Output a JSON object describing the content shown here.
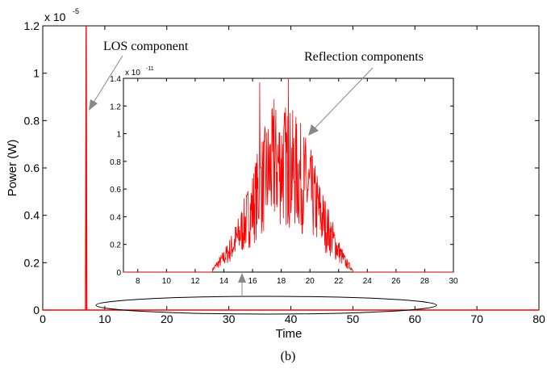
{
  "chart_data": [
    {
      "type": "line",
      "panel": "main",
      "xlabel": "Time",
      "ylabel": "Power (W)",
      "xlim": [
        0,
        80
      ],
      "ylim": [
        0,
        1.2
      ],
      "y_multiplier_base": "x 10",
      "y_multiplier_exp": "-5",
      "xticks": [
        0,
        10,
        20,
        30,
        40,
        50,
        60,
        70,
        80
      ],
      "yticks": [
        0,
        0.2,
        0.4,
        0.6,
        0.8,
        1,
        1.2
      ],
      "line_color": "#ff0000",
      "series": [
        {
          "name": "LOS component",
          "x": [
            0,
            6.9,
            7.0,
            7.1,
            80
          ],
          "y": [
            0,
            0,
            1.2,
            0,
            0
          ]
        }
      ],
      "annotations": [
        "LOS component",
        "Reflection components"
      ]
    },
    {
      "type": "line",
      "panel": "inset",
      "xlim": [
        7,
        30
      ],
      "ylim": [
        0,
        1.4
      ],
      "y_multiplier_base": "x 10",
      "y_multiplier_exp": "-11",
      "xticks": [
        8,
        10,
        12,
        14,
        16,
        18,
        20,
        22,
        24,
        26,
        28,
        30
      ],
      "yticks": [
        0,
        0.2,
        0.4,
        0.6,
        0.8,
        1,
        1.2,
        1.4
      ],
      "line_color": "#ff0000",
      "envelope": {
        "x": [
          13.2,
          13.5,
          14,
          14.5,
          15,
          15.5,
          16,
          16.5,
          17,
          17.5,
          18,
          18.5,
          19,
          19.5,
          20,
          20.5,
          21,
          21.5,
          22,
          22.5,
          23
        ],
        "y": [
          0.02,
          0.06,
          0.12,
          0.2,
          0.3,
          0.42,
          0.55,
          0.7,
          0.82,
          0.9,
          0.92,
          0.9,
          0.85,
          0.78,
          0.68,
          0.55,
          0.42,
          0.3,
          0.18,
          0.08,
          0.02
        ]
      },
      "peaks": [
        {
          "x": 16.5,
          "y": 1.37
        },
        {
          "x": 18.5,
          "y": 1.4
        },
        {
          "x": 17.5,
          "y": 1.25
        }
      ]
    }
  ],
  "labels": {
    "los": "LOS component",
    "reflection": "Reflection components",
    "caption": "(b)",
    "xlabel": "Time",
    "ylabel": "Power (W)",
    "main_exp_base": "x 10",
    "main_exp": "-5",
    "inset_exp_base": "x 10",
    "inset_exp": "-11"
  }
}
